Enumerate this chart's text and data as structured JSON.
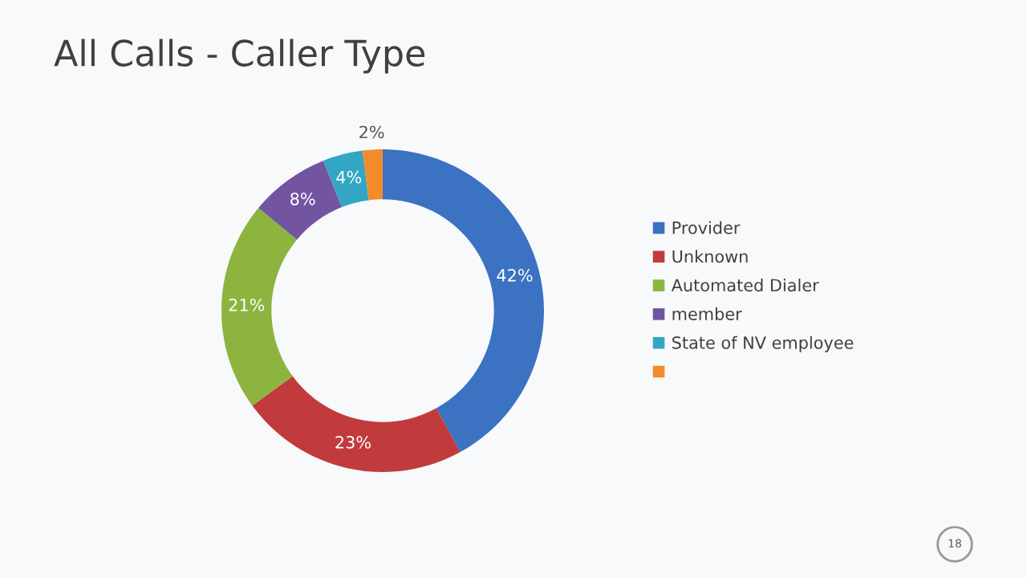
{
  "chart_data": {
    "type": "donut",
    "title": "All Calls - Caller Type",
    "categories": [
      "Provider",
      "Unknown",
      "Automated Dialer",
      "member",
      "State of NV employee",
      null
    ],
    "values": [
      42,
      23,
      21,
      8,
      4,
      2
    ],
    "colors": [
      "#3b72c2",
      "#c23b3c",
      "#8cb43f",
      "#7254a1",
      "#33a6c4",
      "#f28c2b"
    ],
    "value_labels": [
      "42%",
      "23%",
      "21%",
      "8%",
      "4%",
      "2%"
    ],
    "legend": "right",
    "annotations": [
      "18"
    ]
  }
}
